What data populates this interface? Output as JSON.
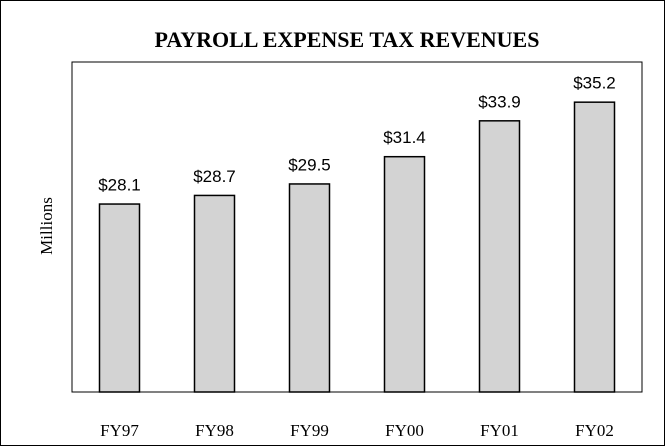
{
  "chart_data": {
    "type": "bar",
    "title": "PAYROLL EXPENSE TAX REVENUES",
    "y_label": "Millions",
    "categories": [
      "FY97",
      "FY98",
      "FY99",
      "FY00",
      "FY01",
      "FY02"
    ],
    "values": [
      28.1,
      28.7,
      29.5,
      31.4,
      33.9,
      35.2
    ],
    "value_labels": [
      "$28.1",
      "$28.7",
      "$29.5",
      "$31.4",
      "$33.9",
      "$35.2"
    ],
    "color": "#d3d3d3",
    "ylim": [
      15,
      38
    ]
  }
}
